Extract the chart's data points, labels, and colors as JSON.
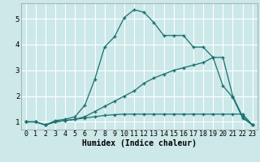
{
  "xlabel": "Humidex (Indice chaleur)",
  "ylabel": "",
  "bg_color": "#cce8e8",
  "grid_color": "#ffffff",
  "line_color": "#1a7070",
  "xlim": [
    -0.5,
    23.5
  ],
  "ylim": [
    0.7,
    5.6
  ],
  "yticks": [
    1,
    2,
    3,
    4,
    5
  ],
  "xticks": [
    0,
    1,
    2,
    3,
    4,
    5,
    6,
    7,
    8,
    9,
    10,
    11,
    12,
    13,
    14,
    15,
    16,
    17,
    18,
    19,
    20,
    21,
    22,
    23
  ],
  "line1_x": [
    0,
    1,
    2,
    3,
    4,
    5,
    6,
    7,
    8,
    9,
    10,
    11,
    12,
    13,
    14,
    15,
    16,
    17,
    18,
    19,
    20,
    21,
    22,
    23
  ],
  "line1_y": [
    1.0,
    1.0,
    0.88,
    1.0,
    1.05,
    1.1,
    1.15,
    1.2,
    1.25,
    1.28,
    1.3,
    1.3,
    1.3,
    1.3,
    1.3,
    1.3,
    1.3,
    1.3,
    1.3,
    1.3,
    1.3,
    1.3,
    1.3,
    0.88
  ],
  "line2_x": [
    0,
    1,
    2,
    3,
    4,
    5,
    6,
    7,
    8,
    9,
    10,
    11,
    12,
    13,
    14,
    15,
    16,
    17,
    18,
    19,
    20,
    21,
    22,
    23
  ],
  "line2_y": [
    1.0,
    1.0,
    0.88,
    1.0,
    1.05,
    1.1,
    1.2,
    1.4,
    1.6,
    1.8,
    2.0,
    2.2,
    2.5,
    2.7,
    2.85,
    3.0,
    3.1,
    3.2,
    3.3,
    3.5,
    2.4,
    1.95,
    1.15,
    0.88
  ],
  "line3_x": [
    0,
    1,
    2,
    3,
    4,
    5,
    6,
    7,
    8,
    9,
    10,
    11,
    12,
    13,
    14,
    15,
    16,
    17,
    18,
    19,
    20,
    21,
    22,
    23
  ],
  "line3_y": [
    1.0,
    1.0,
    0.88,
    1.05,
    1.1,
    1.2,
    1.65,
    2.65,
    3.9,
    4.3,
    5.05,
    5.35,
    5.25,
    4.85,
    4.35,
    4.35,
    4.35,
    3.9,
    3.9,
    3.5,
    3.5,
    2.0,
    1.2,
    0.88
  ],
  "marker": "+",
  "markersize": 3.5,
  "linewidth": 0.9,
  "xlabel_fontsize": 7,
  "tick_fontsize": 6
}
